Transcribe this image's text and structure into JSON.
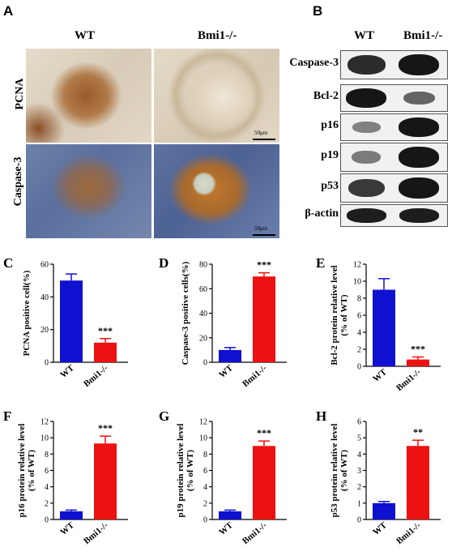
{
  "panels": {
    "A": "A",
    "B": "B",
    "C": "C",
    "D": "D",
    "E": "E",
    "F": "F",
    "G": "G",
    "H": "H"
  },
  "histology": {
    "columns": [
      "WT",
      "Bmi1-/-"
    ],
    "rows": [
      "PCNA",
      "Caspase-3"
    ],
    "scale_bar": "50μm"
  },
  "western": {
    "columns": [
      "WT",
      "Bmi1-/-"
    ],
    "rows": [
      "Caspase-3",
      "Bcl-2",
      "p16",
      "p19",
      "p53",
      "β-actin"
    ],
    "band_intensity": {
      "Caspase-3": [
        0.85,
        1.0
      ],
      "Bcl-2": [
        1.0,
        0.45
      ],
      "p16": [
        0.25,
        1.0
      ],
      "p19": [
        0.3,
        1.0
      ],
      "p53": [
        0.75,
        1.0
      ],
      "β-actin": [
        0.95,
        0.95
      ]
    }
  },
  "colors": {
    "wt": "#1010d0",
    "ko": "#ee1111"
  },
  "chart_data": [
    {
      "id": "C",
      "type": "bar",
      "categories": [
        "WT",
        "Bmi1-/-"
      ],
      "values": [
        50,
        12
      ],
      "errors": [
        4,
        2.5
      ],
      "ylabel": "PCNA positive cell(%)",
      "ylim": [
        0,
        60
      ],
      "yticks": [
        0,
        20,
        40,
        60
      ],
      "significance": "***"
    },
    {
      "id": "D",
      "type": "bar",
      "categories": [
        "WT",
        "Bmi1-/-"
      ],
      "values": [
        10,
        70
      ],
      "errors": [
        2,
        3
      ],
      "ylabel": "Caspase-3 positive cells(%)",
      "ylim": [
        0,
        80
      ],
      "yticks": [
        0,
        20,
        40,
        60,
        80
      ],
      "significance": "***"
    },
    {
      "id": "E",
      "type": "bar",
      "categories": [
        "WT",
        "Bmi1-/-"
      ],
      "values": [
        9,
        0.8
      ],
      "errors": [
        1.3,
        0.3
      ],
      "ylabel": "Bcl-2 protein relative level",
      "ylabel2": "(% of WT)",
      "ylim": [
        0,
        12
      ],
      "yticks": [
        0,
        2,
        4,
        6,
        8,
        10,
        12
      ],
      "significance": "***"
    },
    {
      "id": "F",
      "type": "bar",
      "categories": [
        "WT",
        "Bmi1-/-"
      ],
      "values": [
        1,
        9.3
      ],
      "errors": [
        0.15,
        0.9
      ],
      "ylabel": "p16 protein relative level",
      "ylabel2": "(% of WT)",
      "ylim": [
        0,
        12
      ],
      "yticks": [
        0,
        2,
        4,
        6,
        8,
        10,
        12
      ],
      "significance": "***"
    },
    {
      "id": "G",
      "type": "bar",
      "categories": [
        "WT",
        "Bmi1-/-"
      ],
      "values": [
        1,
        9
      ],
      "errors": [
        0.15,
        0.6
      ],
      "ylabel": "p19 protein relative level",
      "ylabel2": "(% of WT)",
      "ylim": [
        0,
        12
      ],
      "yticks": [
        0,
        2,
        4,
        6,
        8,
        10,
        12
      ],
      "significance": "***"
    },
    {
      "id": "H",
      "type": "bar",
      "categories": [
        "WT",
        "Bmi1-/-"
      ],
      "values": [
        1,
        4.5
      ],
      "errors": [
        0.1,
        0.35
      ],
      "ylabel": "p53 protein relative level",
      "ylabel2": "(% of WT)",
      "ylim": [
        0,
        6
      ],
      "yticks": [
        0,
        1,
        2,
        3,
        4,
        5,
        6
      ],
      "significance": "**"
    }
  ]
}
